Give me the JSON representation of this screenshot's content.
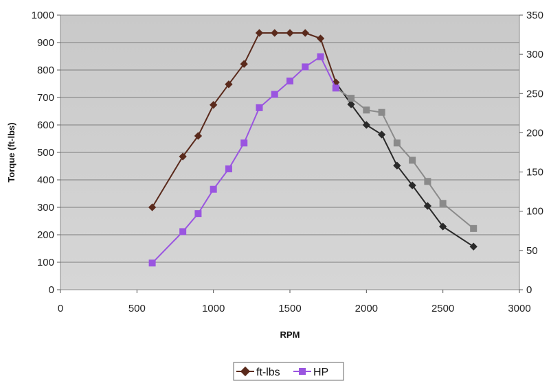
{
  "chart_data": {
    "type": "line",
    "title": "",
    "xlabel": "RPM",
    "ylabel": "Torque (ft-lbs)",
    "y2label": "",
    "xlim": [
      0,
      3000
    ],
    "ylim": [
      0,
      1000
    ],
    "y2lim": [
      0,
      350
    ],
    "x_ticks": [
      "0",
      "500",
      "1000",
      "1500",
      "2000",
      "2500",
      "3000"
    ],
    "y_ticks": [
      "0",
      "100",
      "200",
      "300",
      "400",
      "500",
      "600",
      "700",
      "800",
      "900",
      "1000"
    ],
    "y2_ticks": [
      "0",
      "50",
      "100",
      "150",
      "200",
      "250",
      "300",
      "350"
    ],
    "grid": "horizontal",
    "legend_position": "bottom",
    "series": [
      {
        "name": "ft-lbs",
        "axis": "left",
        "color": "#5a2a1c",
        "color_late": "#2a2a2a",
        "marker": "diamond",
        "x": [
          600,
          800,
          900,
          1000,
          1100,
          1200,
          1300,
          1400,
          1500,
          1600,
          1700,
          1800,
          1900,
          2000,
          2100,
          2200,
          2300,
          2400,
          2500,
          2700
        ],
        "values": [
          300,
          485,
          560,
          673,
          748,
          822,
          935,
          935,
          935,
          935,
          915,
          755,
          675,
          600,
          565,
          452,
          380,
          305,
          230,
          157
        ]
      },
      {
        "name": "HP",
        "axis": "right",
        "color": "#9a55e0",
        "color_late": "#8a8a8a",
        "marker": "square",
        "x": [
          600,
          800,
          900,
          1000,
          1100,
          1200,
          1300,
          1400,
          1500,
          1600,
          1700,
          1800,
          1900,
          2000,
          2100,
          2200,
          2300,
          2400,
          2500,
          2700
        ],
        "values": [
          34,
          74,
          97,
          128,
          154,
          187,
          232,
          249,
          266,
          284,
          297,
          257,
          244,
          229,
          226,
          187,
          165,
          138,
          110,
          78
        ]
      }
    ]
  }
}
